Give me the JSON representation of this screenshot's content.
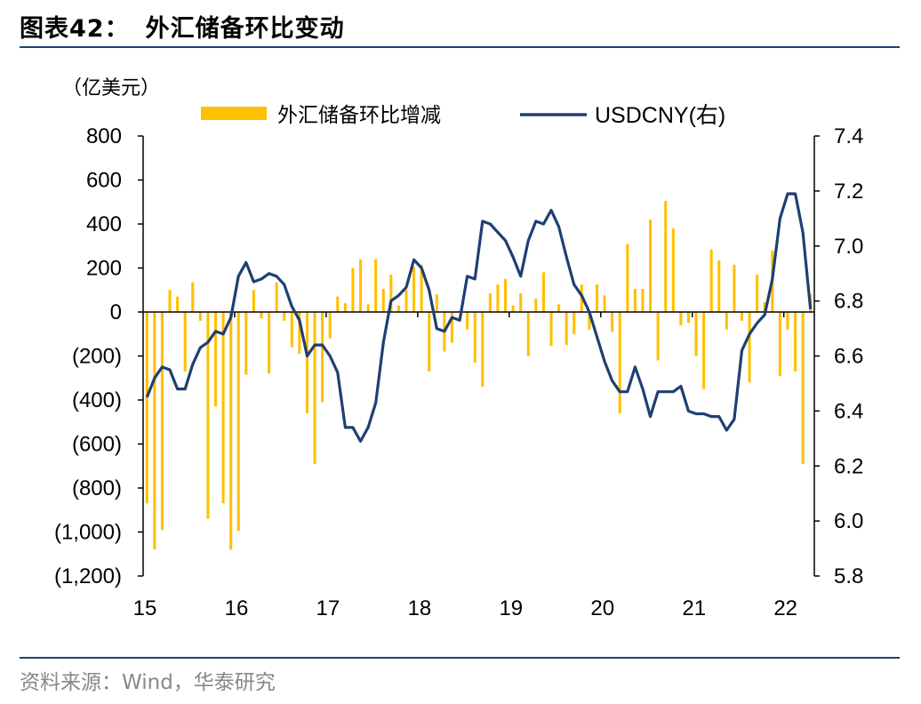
{
  "title": {
    "figure_no": "图表42：",
    "text": "外汇储备环比变动"
  },
  "source": "资料来源：Wind，华泰研究",
  "chart_data": {
    "type": "bar",
    "unit_label": "（亿美元）",
    "colors": {
      "bar": "#FFC000",
      "line": "#1F3F73"
    },
    "legend": [
      {
        "name": "外汇储备环比增减",
        "kind": "bar"
      },
      {
        "name": "USDCNY(右)",
        "kind": "line"
      }
    ],
    "legend_position": "top-center",
    "grid": false,
    "x": {
      "tick_labels": [
        "15",
        "16",
        "17",
        "18",
        "19",
        "20",
        "21",
        "22"
      ],
      "start": "2015-01",
      "months": 88
    },
    "y_left": {
      "ylim": [
        -1200,
        800
      ],
      "ticks": [
        800,
        600,
        400,
        200,
        0,
        -200,
        -400,
        -600,
        -800,
        -1000,
        -1200
      ],
      "tick_labels": [
        "800",
        "600",
        "400",
        "200",
        "0",
        "(200)",
        "(400)",
        "(600)",
        "(800)",
        "(1,000)",
        "(1,200)"
      ]
    },
    "y_right": {
      "ylim": [
        5.8,
        7.4
      ],
      "ticks": [
        7.4,
        7.2,
        7.0,
        6.8,
        6.6,
        6.4,
        6.2,
        6.0,
        5.8
      ],
      "tick_labels": [
        "7.4",
        "7.2",
        "7.0",
        "6.8",
        "6.6",
        "6.4",
        "6.2",
        "6.0",
        "5.8"
      ]
    },
    "series": [
      {
        "name": "外汇储备环比增减",
        "type": "bar",
        "values": [
          -870,
          -1080,
          -990,
          100,
          70,
          -270,
          135,
          -40,
          -940,
          -430,
          -870,
          -1080,
          -995,
          -285,
          100,
          -30,
          -280,
          135,
          -40,
          -160,
          -190,
          -460,
          -690,
          -410,
          -120,
          70,
          40,
          200,
          240,
          35,
          240,
          105,
          170,
          30,
          100,
          205,
          215,
          -270,
          80,
          -180,
          -140,
          5,
          -80,
          -230,
          -340,
          85,
          125,
          150,
          30,
          85,
          -200,
          60,
          180,
          -155,
          35,
          -150,
          -100,
          125,
          -80,
          125,
          75,
          -90,
          -460,
          310,
          105,
          105,
          420,
          -220,
          505,
          380,
          -60,
          -50,
          -200,
          -350,
          285,
          235,
          -80,
          215,
          -40,
          -320,
          170,
          45,
          280,
          -290,
          -80,
          -270,
          -690,
          80
        ]
      },
      {
        "name": "USDCNY(右)",
        "type": "line",
        "values": [
          6.45,
          6.52,
          6.56,
          6.55,
          6.48,
          6.48,
          6.57,
          6.63,
          6.65,
          6.69,
          6.68,
          6.74,
          6.89,
          6.94,
          6.87,
          6.88,
          6.9,
          6.89,
          6.86,
          6.78,
          6.73,
          6.6,
          6.64,
          6.64,
          6.6,
          6.54,
          6.34,
          6.34,
          6.29,
          6.34,
          6.43,
          6.65,
          6.8,
          6.82,
          6.85,
          6.95,
          6.92,
          6.84,
          6.7,
          6.69,
          6.74,
          6.73,
          6.89,
          6.88,
          7.09,
          7.08,
          7.05,
          7.02,
          6.96,
          6.89,
          7.02,
          7.09,
          7.08,
          7.13,
          7.07,
          6.96,
          6.86,
          6.82,
          6.76,
          6.67,
          6.58,
          6.51,
          6.47,
          6.47,
          6.56,
          6.48,
          6.38,
          6.47,
          6.47,
          6.47,
          6.49,
          6.4,
          6.39,
          6.39,
          6.38,
          6.38,
          6.33,
          6.37,
          6.62,
          6.68,
          6.72,
          6.75,
          6.88,
          7.1,
          7.19,
          7.19,
          7.05,
          6.77
        ]
      }
    ]
  }
}
